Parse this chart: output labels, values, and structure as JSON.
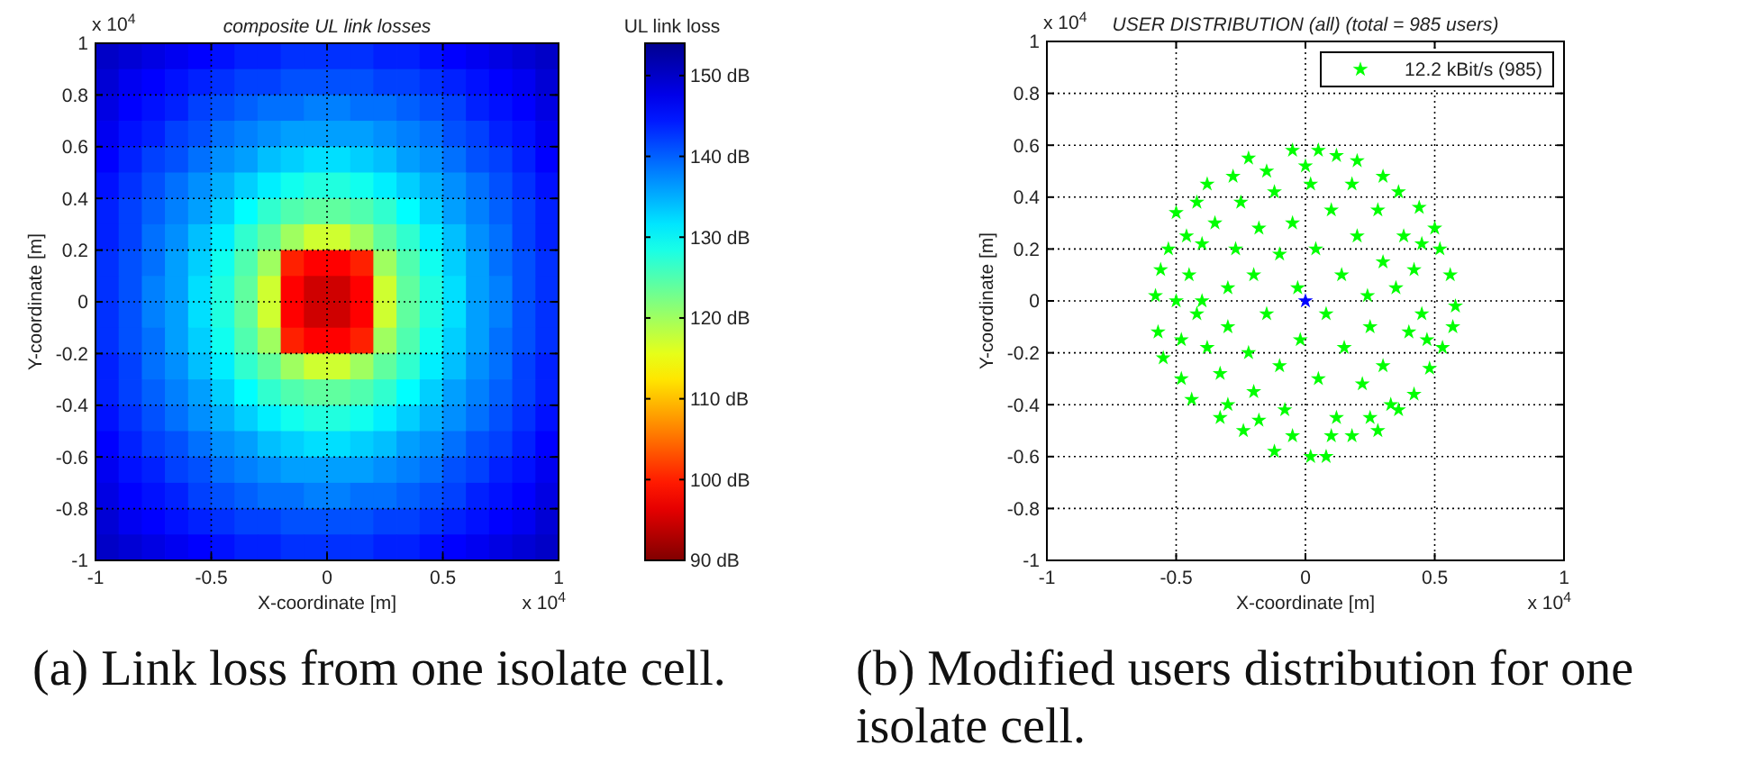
{
  "chart_data": [
    {
      "type": "heatmap",
      "title": "composite UL link losses",
      "xlabel": "X-coordinate [m]",
      "ylabel": "Y-coordinate [m]",
      "clabel": "UL link loss",
      "cells": [
        [
          150,
          149,
          148,
          147,
          146,
          145,
          144,
          144,
          143,
          143,
          143,
          143,
          144,
          144,
          145,
          146,
          147,
          148,
          149,
          150
        ],
        [
          149,
          147,
          146,
          145,
          144,
          143,
          142,
          142,
          141,
          141,
          141,
          141,
          142,
          142,
          143,
          144,
          145,
          146,
          147,
          149
        ],
        [
          148,
          146,
          145,
          144,
          142,
          141,
          140,
          139,
          139,
          138,
          138,
          139,
          139,
          140,
          141,
          142,
          144,
          145,
          146,
          148
        ],
        [
          147,
          145,
          144,
          142,
          141,
          139,
          138,
          137,
          136,
          136,
          136,
          136,
          137,
          138,
          139,
          141,
          142,
          144,
          145,
          147
        ],
        [
          146,
          144,
          142,
          141,
          139,
          137,
          136,
          134,
          133,
          132,
          132,
          133,
          134,
          136,
          137,
          139,
          141,
          142,
          144,
          146
        ],
        [
          145,
          143,
          141,
          139,
          137,
          135,
          133,
          131,
          129,
          128,
          128,
          129,
          131,
          133,
          135,
          137,
          139,
          141,
          143,
          145
        ],
        [
          144,
          142,
          140,
          138,
          136,
          133,
          130,
          127,
          125,
          124,
          124,
          125,
          127,
          130,
          133,
          136,
          138,
          140,
          142,
          144
        ],
        [
          144,
          142,
          139,
          137,
          134,
          131,
          127,
          124,
          120,
          117,
          117,
          120,
          124,
          127,
          131,
          134,
          137,
          139,
          142,
          144
        ],
        [
          143,
          141,
          139,
          136,
          133,
          129,
          125,
          120,
          100,
          98,
          98,
          100,
          120,
          125,
          129,
          133,
          136,
          139,
          141,
          143
        ],
        [
          143,
          141,
          138,
          136,
          132,
          128,
          124,
          117,
          98,
          95,
          95,
          98,
          117,
          124,
          128,
          132,
          136,
          138,
          141,
          143
        ],
        [
          143,
          141,
          138,
          136,
          132,
          128,
          124,
          117,
          98,
          95,
          95,
          98,
          117,
          124,
          128,
          132,
          136,
          138,
          141,
          143
        ],
        [
          143,
          141,
          139,
          136,
          133,
          129,
          125,
          120,
          100,
          98,
          98,
          100,
          120,
          125,
          129,
          133,
          136,
          139,
          141,
          143
        ],
        [
          144,
          142,
          139,
          137,
          134,
          131,
          127,
          124,
          120,
          117,
          117,
          120,
          124,
          127,
          131,
          134,
          137,
          139,
          142,
          144
        ],
        [
          144,
          142,
          140,
          138,
          136,
          133,
          130,
          127,
          125,
          124,
          124,
          125,
          127,
          130,
          133,
          136,
          138,
          140,
          142,
          144
        ],
        [
          145,
          143,
          141,
          139,
          137,
          135,
          133,
          131,
          129,
          128,
          128,
          129,
          131,
          133,
          135,
          137,
          139,
          141,
          143,
          145
        ],
        [
          146,
          144,
          142,
          141,
          139,
          137,
          136,
          134,
          133,
          132,
          132,
          133,
          134,
          136,
          137,
          139,
          141,
          142,
          144,
          146
        ],
        [
          147,
          145,
          144,
          142,
          141,
          139,
          138,
          137,
          136,
          136,
          136,
          136,
          137,
          138,
          139,
          141,
          142,
          144,
          145,
          147
        ],
        [
          148,
          146,
          145,
          144,
          142,
          141,
          140,
          139,
          139,
          138,
          138,
          139,
          139,
          140,
          141,
          142,
          144,
          145,
          146,
          148
        ],
        [
          149,
          147,
          146,
          145,
          144,
          143,
          142,
          142,
          141,
          141,
          141,
          141,
          142,
          142,
          143,
          144,
          145,
          146,
          147,
          149
        ],
        [
          150,
          149,
          148,
          147,
          146,
          145,
          144,
          144,
          143,
          143,
          143,
          143,
          144,
          144,
          145,
          146,
          147,
          148,
          149,
          150
        ]
      ],
      "clim": [
        90,
        154
      ],
      "cticks": [
        {
          "value": 90,
          "label": "90 dB"
        },
        {
          "value": 100,
          "label": "100 dB"
        },
        {
          "value": 110,
          "label": "110 dB"
        },
        {
          "value": 120,
          "label": "120 dB"
        },
        {
          "value": 130,
          "label": "130 dB"
        },
        {
          "value": 140,
          "label": "140 dB"
        },
        {
          "value": 150,
          "label": "150 dB"
        }
      ],
      "xlim": [
        -1,
        1
      ],
      "ylim": [
        -1,
        1
      ],
      "xticks": [
        -1,
        -0.5,
        0,
        0.5,
        1
      ],
      "yticks": [
        -1,
        -0.8,
        -0.6,
        -0.4,
        -0.2,
        0,
        0.2,
        0.4,
        0.6,
        0.8,
        1
      ],
      "grid": true,
      "annotations": [
        "x 10$^{4}$",
        "x 10$^{4}$",
        "(a) Link loss from one isolate cell."
      ]
    },
    {
      "type": "scatter",
      "title": "USER DISTRIBUTION (all) (total = 985 users)",
      "xlabel": "X-coordinate [m]",
      "ylabel": "Y-coordinate [m]",
      "series": [
        {
          "name": "12.2 kBit/s (985)",
          "color": "#00ff00",
          "x": [
            -0.58,
            -0.57,
            -0.55,
            -0.56,
            -0.5,
            -0.53,
            -0.48,
            -0.44,
            -0.42,
            -0.38,
            -0.33,
            -0.28,
            -0.22,
            -0.24,
            -0.18,
            -0.12,
            -0.05,
            0.05,
            0.02,
            0.08,
            0.12,
            0.2,
            0.18,
            0.28,
            0.3,
            0.36,
            0.36,
            0.44,
            0.42,
            0.5,
            0.52,
            0.48,
            0.53,
            0.56,
            0.58,
            0.57,
            -0.45,
            -0.42,
            -0.4,
            -0.38,
            -0.35,
            -0.33,
            -0.3,
            -0.3,
            -0.27,
            -0.25,
            -0.22,
            -0.2,
            -0.2,
            -0.18,
            -0.15,
            -0.12,
            -0.1,
            -0.1,
            -0.08,
            -0.05,
            -0.03,
            -0.02,
            0.02,
            0.04,
            0.05,
            0.08,
            0.1,
            0.12,
            0.14,
            0.15,
            0.18,
            0.2,
            0.22,
            0.24,
            0.25,
            0.28,
            0.3,
            0.3,
            0.33,
            0.35,
            0.38,
            0.4,
            0.42,
            0.45,
            0.45,
            0.47,
            -0.48,
            -0.5,
            -0.46,
            0,
            -0.15,
            0.25,
            -0.3,
            0.1,
            -0.05,
            -0.4
          ],
          "values": [
            0.02,
            -0.12,
            -0.22,
            0.12,
            0.34,
            0.2,
            -0.3,
            -0.38,
            0.38,
            0.45,
            -0.45,
            0.48,
            0.55,
            -0.5,
            -0.46,
            -0.58,
            0.58,
            0.58,
            -0.6,
            -0.6,
            0.56,
            0.54,
            -0.52,
            -0.5,
            0.48,
            0.42,
            -0.42,
            0.36,
            -0.36,
            0.28,
            0.2,
            -0.26,
            -0.18,
            0.1,
            -0.02,
            -0.1,
            0.1,
            -0.05,
            0.22,
            -0.18,
            0.3,
            -0.28,
            0.05,
            -0.1,
            0.2,
            0.38,
            -0.2,
            0.1,
            -0.35,
            0.28,
            -0.05,
            0.42,
            0.18,
            -0.25,
            -0.42,
            0.3,
            0.05,
            -0.15,
            0.45,
            0.2,
            -0.3,
            -0.05,
            0.35,
            -0.45,
            0.1,
            -0.18,
            0.45,
            0.25,
            -0.32,
            0.02,
            -0.1,
            0.35,
            0.15,
            -0.25,
            -0.4,
            0.05,
            0.25,
            -0.12,
            0.12,
            -0.05,
            0.22,
            -0.15,
            -0.15,
            0,
            0.25,
            0.52,
            0.5,
            -0.45,
            -0.4,
            -0.52,
            -0.52,
            0
          ]
        },
        {
          "color": "#0000ff",
          "x": [
            0
          ],
          "values": [
            0
          ]
        }
      ],
      "xlim": [
        -1,
        1
      ],
      "ylim": [
        -1,
        1
      ],
      "xticks": [
        -1,
        -0.5,
        0,
        0.5,
        1
      ],
      "yticks": [
        -1,
        -0.8,
        -0.6,
        -0.4,
        -0.2,
        0,
        0.2,
        0.4,
        0.6,
        0.8,
        1
      ],
      "grid": true,
      "legend": "top right",
      "marker": "star",
      "annotations": [
        "x 10$^{4}$",
        "x 10$^{4}$",
        "(b) Modified users distribution for one isolate cell."
      ]
    }
  ]
}
